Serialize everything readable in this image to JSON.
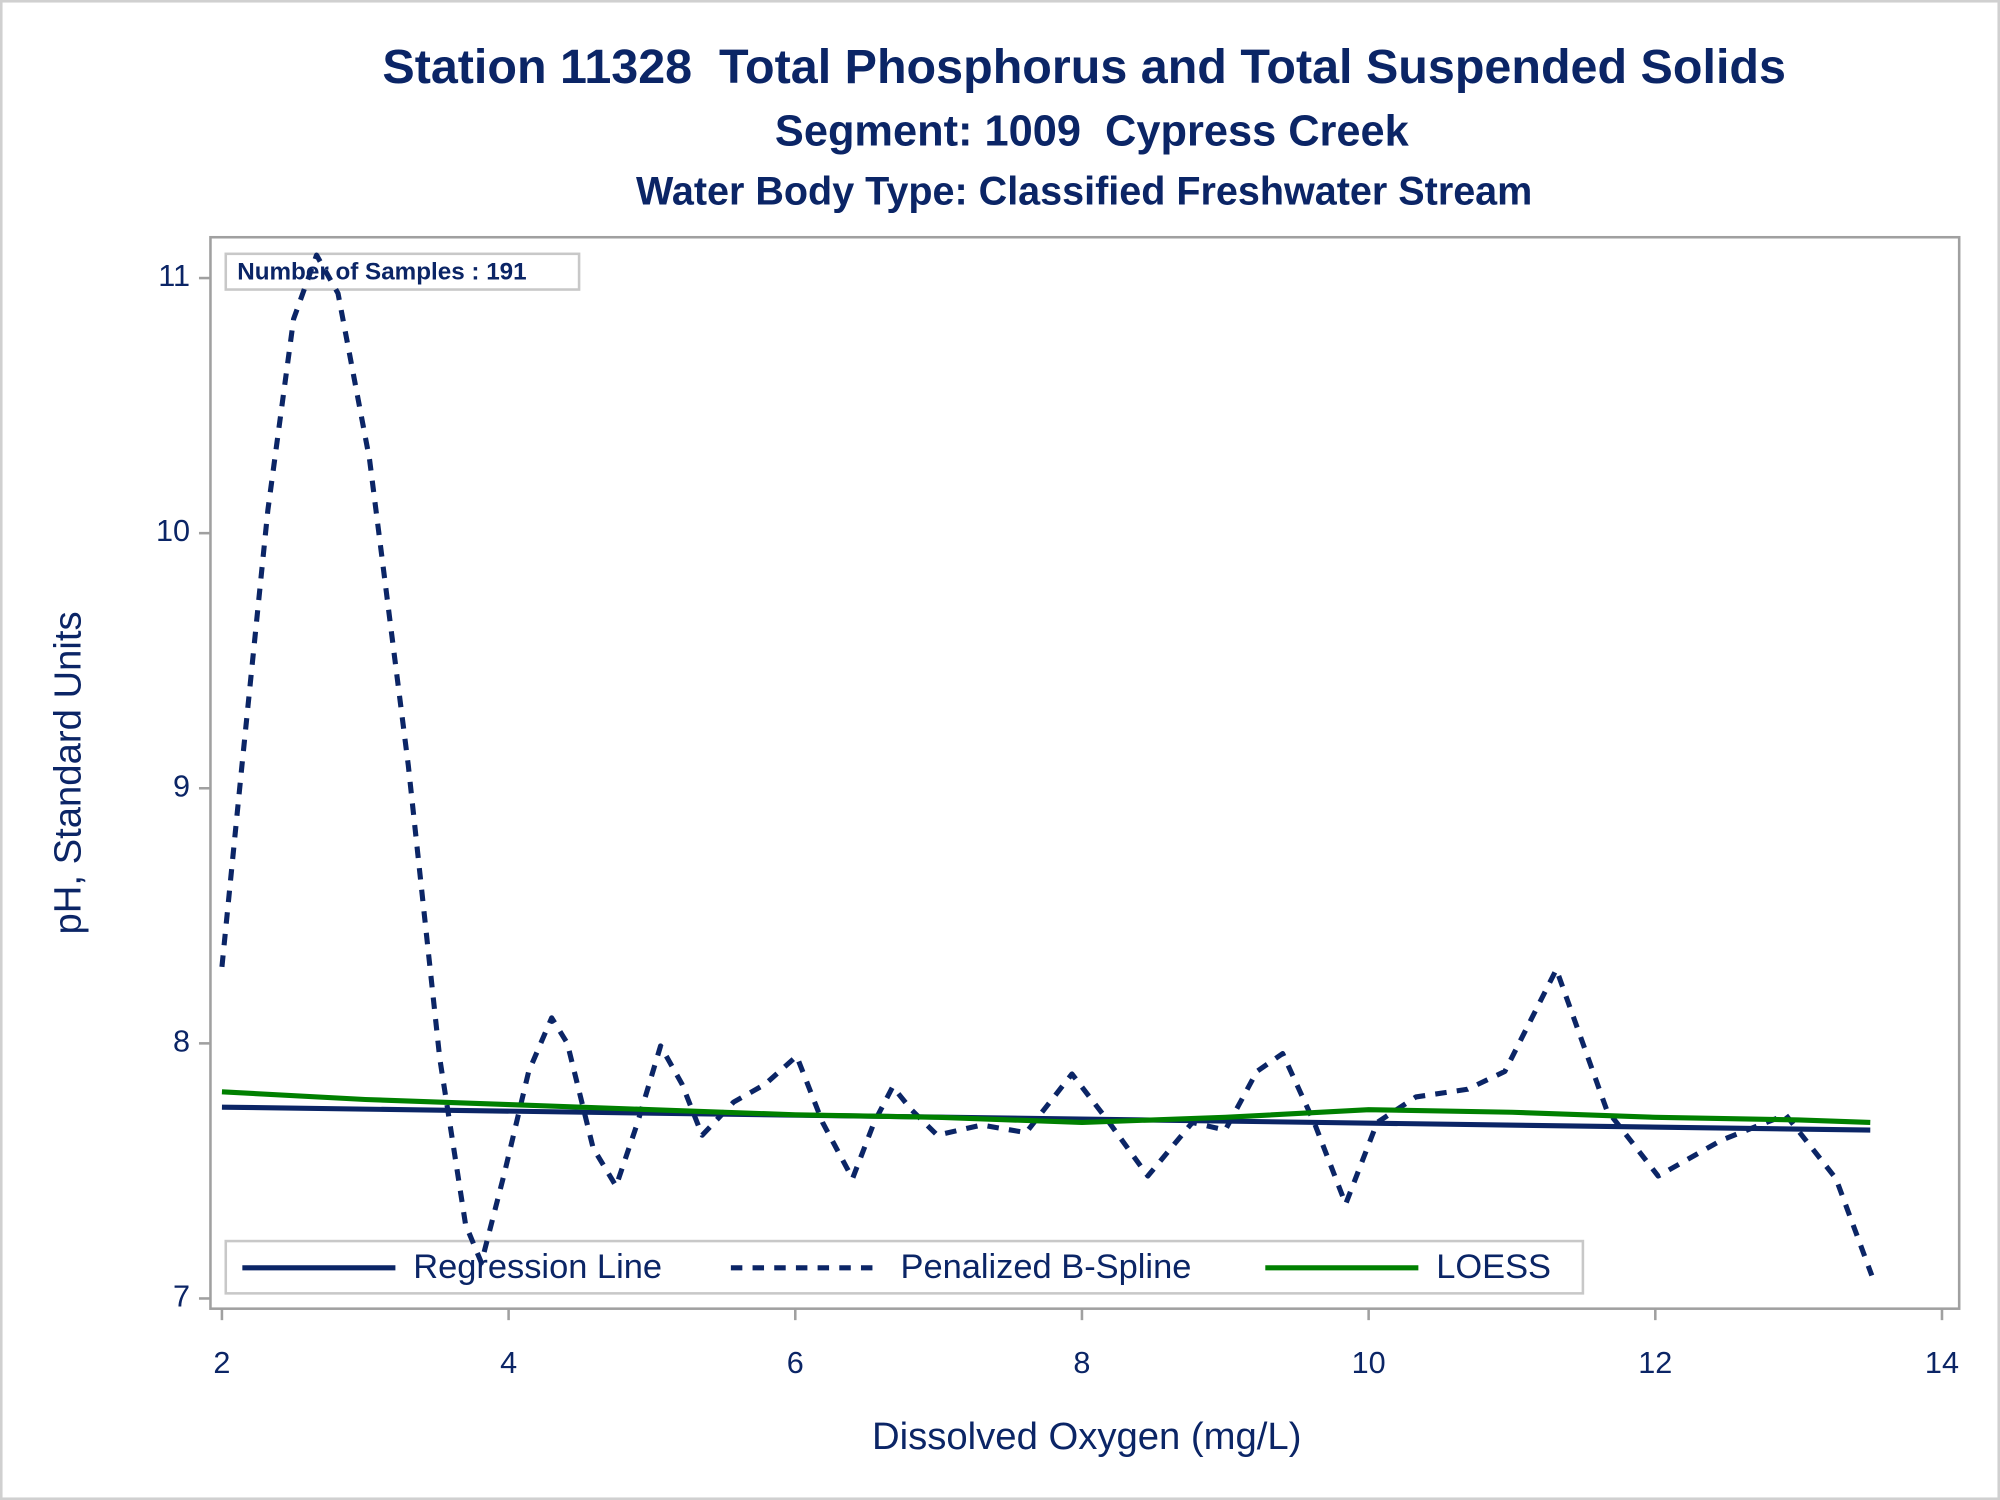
{
  "chart_data": {
    "type": "line",
    "title": "Station 11328  Total Phosphorus and Total Suspended Solids",
    "subtitles": [
      "Segment: 1009  Cypress Creek",
      "Water Body Type: Classified Freshwater Stream"
    ],
    "annotation": "Number of Samples : 191",
    "x_label": "Dissolved Oxygen (mg/L)",
    "y_label": "pH, Standard Units",
    "xlim": [
      1.92,
      14.12
    ],
    "ylim": [
      6.96,
      11.16
    ],
    "xticks": [
      2,
      4,
      6,
      8,
      10,
      12,
      14
    ],
    "yticks": [
      7,
      8,
      9,
      10,
      11
    ],
    "legend": "bottom",
    "series": [
      {
        "name": "Regression Line",
        "color": "#0b2566",
        "dash": "solid",
        "x": [
          2,
          13.5
        ],
        "values": [
          7.75,
          7.66
        ]
      },
      {
        "name": "Penalized B-Spline",
        "color": "#0b2566",
        "dash": "dashed",
        "x": [
          2,
          2.14,
          2.32,
          2.5,
          2.66,
          2.81,
          3.03,
          3.3,
          3.52,
          3.7,
          3.81,
          3.97,
          4.14,
          4.3,
          4.41,
          4.59,
          4.75,
          4.9,
          5.06,
          5.21,
          5.35,
          5.57,
          5.79,
          6.01,
          6.19,
          6.4,
          6.55,
          6.68,
          6.81,
          6.99,
          7.3,
          7.61,
          7.93,
          8.19,
          8.46,
          8.77,
          9.0,
          9.22,
          9.4,
          9.62,
          9.84,
          10.06,
          10.33,
          10.69,
          10.95,
          11.31,
          11.66,
          12.02,
          12.46,
          12.91,
          13.26,
          13.51
        ],
        "values": [
          8.3,
          9.09,
          10.09,
          10.84,
          11.09,
          10.94,
          10.29,
          9.09,
          7.94,
          7.29,
          7.14,
          7.49,
          7.89,
          8.1,
          8.0,
          7.59,
          7.44,
          7.69,
          7.99,
          7.84,
          7.64,
          7.77,
          7.84,
          7.95,
          7.69,
          7.47,
          7.69,
          7.83,
          7.74,
          7.64,
          7.68,
          7.65,
          7.88,
          7.69,
          7.48,
          7.69,
          7.66,
          7.89,
          7.96,
          7.69,
          7.37,
          7.69,
          7.79,
          7.82,
          7.89,
          8.29,
          7.74,
          7.48,
          7.62,
          7.72,
          7.47,
          7.09
        ]
      },
      {
        "name": "LOESS",
        "color": "#008000",
        "dash": "solid",
        "x": [
          2,
          3,
          4,
          5,
          6,
          7,
          8,
          9,
          10,
          11,
          12,
          13,
          13.5
        ],
        "values": [
          7.81,
          7.78,
          7.76,
          7.74,
          7.72,
          7.71,
          7.69,
          7.71,
          7.74,
          7.73,
          7.71,
          7.7,
          7.69
        ]
      }
    ]
  }
}
